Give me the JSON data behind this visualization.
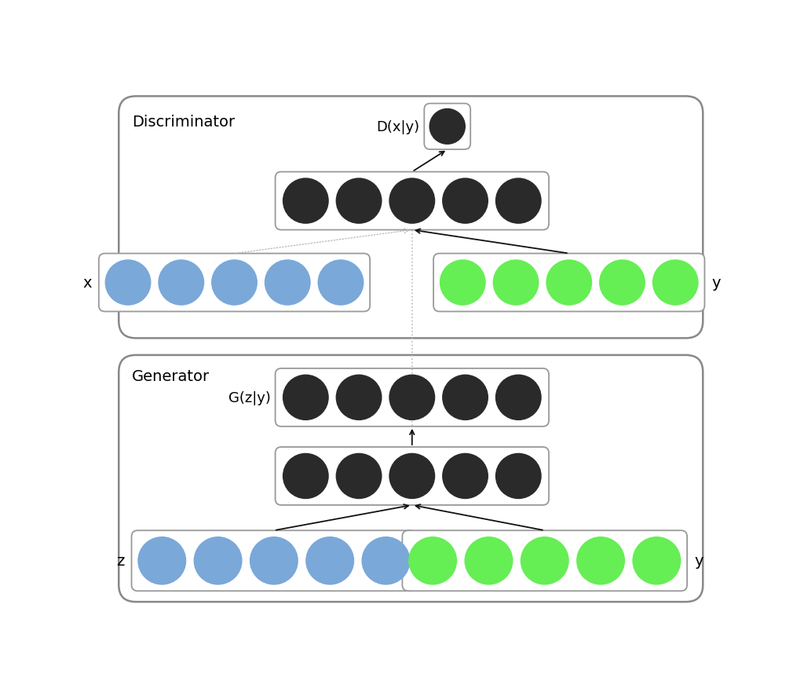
{
  "fig_width": 10.24,
  "fig_height": 8.87,
  "bg_color": "#ffffff",
  "box_bg": "#ffffff",
  "box_edge": "#999999",
  "dark_node_color": "#2a2a2a",
  "blue_node_color": "#7aa8d8",
  "green_node_color": "#66ee55",
  "disc_label": "Discriminator",
  "gen_label": "Generator",
  "disc_output_label": "D(x|y)",
  "gen_output_label": "G(z|y)",
  "x_label": "x",
  "y_label_disc": "y",
  "z_label": "z",
  "y_label_gen": "y",
  "arrow_color": "#111111",
  "dotted_color": "#bbbbbb",
  "outer_box_edge": "#888888",
  "outer_box_bg": "#ffffff"
}
